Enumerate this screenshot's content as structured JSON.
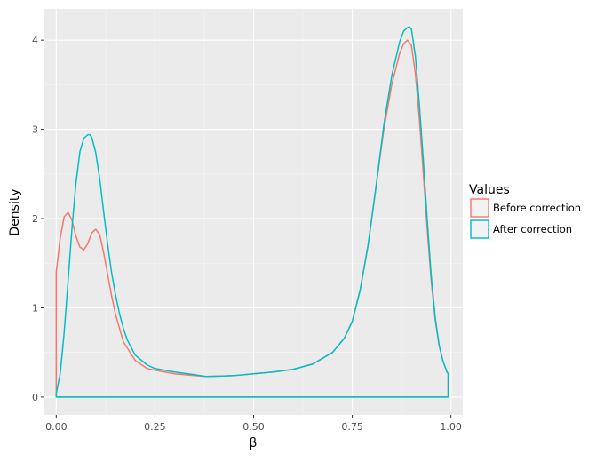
{
  "chart_data": {
    "type": "line",
    "subtype": "density",
    "title": "",
    "xlabel": "β",
    "ylabel": "Density",
    "xlim": [
      -0.03,
      1.03
    ],
    "ylim": [
      -0.2,
      4.35
    ],
    "x_ticks": [
      0.0,
      0.25,
      0.5,
      0.75,
      1.0
    ],
    "x_tick_labels": [
      "0.00",
      "0.25",
      "0.50",
      "0.75",
      "1.00"
    ],
    "y_ticks": [
      0,
      1,
      2,
      3,
      4
    ],
    "y_tick_labels": [
      "0",
      "1",
      "2",
      "3",
      "4"
    ],
    "grid": true,
    "legend": {
      "title": "Values",
      "position": "right",
      "entries": [
        "Before correction",
        "After correction"
      ]
    },
    "series": [
      {
        "name": "Before correction",
        "color": "#F8766D",
        "x": [
          0.0,
          0.0,
          0.01,
          0.02,
          0.03,
          0.04,
          0.05,
          0.06,
          0.07,
          0.08,
          0.09,
          0.1,
          0.11,
          0.12,
          0.13,
          0.14,
          0.15,
          0.17,
          0.2,
          0.23,
          0.25,
          0.3,
          0.35,
          0.38,
          0.45,
          0.5,
          0.55,
          0.6,
          0.65,
          0.7,
          0.73,
          0.75,
          0.77,
          0.79,
          0.81,
          0.83,
          0.85,
          0.87,
          0.88,
          0.89,
          0.9,
          0.91,
          0.92,
          0.93,
          0.94,
          0.95,
          0.96,
          0.97,
          0.98,
          0.99,
          0.993,
          0.993
        ],
        "y": [
          0.0,
          1.4,
          1.78,
          2.02,
          2.07,
          1.98,
          1.8,
          1.68,
          1.65,
          1.72,
          1.84,
          1.88,
          1.82,
          1.62,
          1.38,
          1.14,
          0.93,
          0.62,
          0.41,
          0.32,
          0.3,
          0.26,
          0.24,
          0.23,
          0.24,
          0.26,
          0.28,
          0.31,
          0.37,
          0.5,
          0.66,
          0.85,
          1.2,
          1.7,
          2.35,
          3.0,
          3.5,
          3.85,
          3.96,
          4.0,
          3.94,
          3.62,
          3.12,
          2.5,
          1.88,
          1.3,
          0.87,
          0.58,
          0.4,
          0.28,
          0.26,
          0.0
        ]
      },
      {
        "name": "After correction",
        "color": "#00BFC4",
        "x": [
          0.0,
          0.0,
          0.01,
          0.02,
          0.03,
          0.04,
          0.05,
          0.06,
          0.07,
          0.08,
          0.085,
          0.09,
          0.1,
          0.11,
          0.12,
          0.13,
          0.14,
          0.15,
          0.16,
          0.17,
          0.18,
          0.2,
          0.23,
          0.25,
          0.3,
          0.35,
          0.38,
          0.45,
          0.5,
          0.55,
          0.6,
          0.65,
          0.7,
          0.73,
          0.75,
          0.77,
          0.79,
          0.81,
          0.83,
          0.85,
          0.87,
          0.88,
          0.89,
          0.895,
          0.9,
          0.91,
          0.92,
          0.93,
          0.94,
          0.95,
          0.96,
          0.97,
          0.98,
          0.99,
          0.993,
          0.993
        ],
        "y": [
          0.0,
          0.04,
          0.26,
          0.72,
          1.3,
          1.9,
          2.4,
          2.75,
          2.9,
          2.94,
          2.94,
          2.91,
          2.74,
          2.45,
          2.08,
          1.72,
          1.4,
          1.15,
          0.94,
          0.77,
          0.64,
          0.47,
          0.36,
          0.32,
          0.28,
          0.25,
          0.23,
          0.24,
          0.26,
          0.28,
          0.31,
          0.37,
          0.5,
          0.66,
          0.85,
          1.2,
          1.7,
          2.35,
          3.05,
          3.6,
          3.98,
          4.1,
          4.14,
          4.15,
          4.12,
          3.82,
          3.28,
          2.65,
          1.98,
          1.36,
          0.9,
          0.58,
          0.4,
          0.28,
          0.26,
          0.0
        ]
      }
    ]
  }
}
